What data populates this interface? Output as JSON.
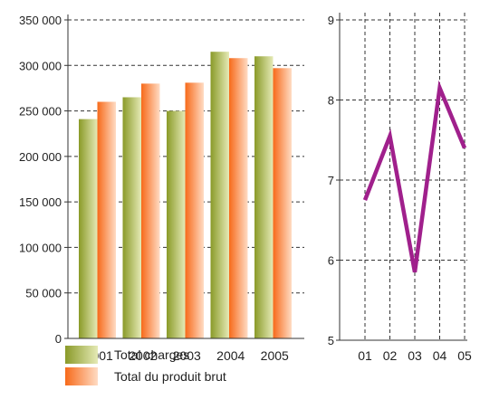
{
  "chart_data": [
    {
      "type": "bar",
      "categories": [
        "2001",
        "2002",
        "2003",
        "2004",
        "2005"
      ],
      "series": [
        {
          "name": "Total charges",
          "values": [
            241000,
            265000,
            250000,
            315000,
            310000
          ]
        },
        {
          "name": "Total du produit brut",
          "values": [
            260000,
            280000,
            281000,
            308000,
            297000
          ]
        }
      ],
      "ylim": [
        0,
        350000
      ],
      "yticks": [
        "0",
        "50 000",
        "100 000",
        "150 000",
        "200 000",
        "250 000",
        "300 000",
        "350 000"
      ],
      "ytick_values": [
        0,
        50000,
        100000,
        150000,
        200000,
        250000,
        300000,
        350000
      ],
      "grid": "horizontal dashed",
      "legend_position": "bottom-left",
      "colors": {
        "Total charges": [
          "#8a9a28",
          "#e5eab6"
        ],
        "Total du produit brut": [
          "#f76a1a",
          "#ffdcc4"
        ]
      }
    },
    {
      "type": "line",
      "x": [
        "01",
        "02",
        "03",
        "04",
        "05"
      ],
      "series": [
        {
          "values": [
            6.75,
            7.55,
            5.85,
            8.15,
            7.4
          ]
        }
      ],
      "ylim": [
        5,
        9
      ],
      "yticks": [
        "5",
        "6",
        "7",
        "8",
        "9"
      ],
      "ytick_values": [
        5,
        6,
        7,
        8,
        9
      ],
      "grid": "both dashed",
      "color": "#a0208c"
    }
  ]
}
